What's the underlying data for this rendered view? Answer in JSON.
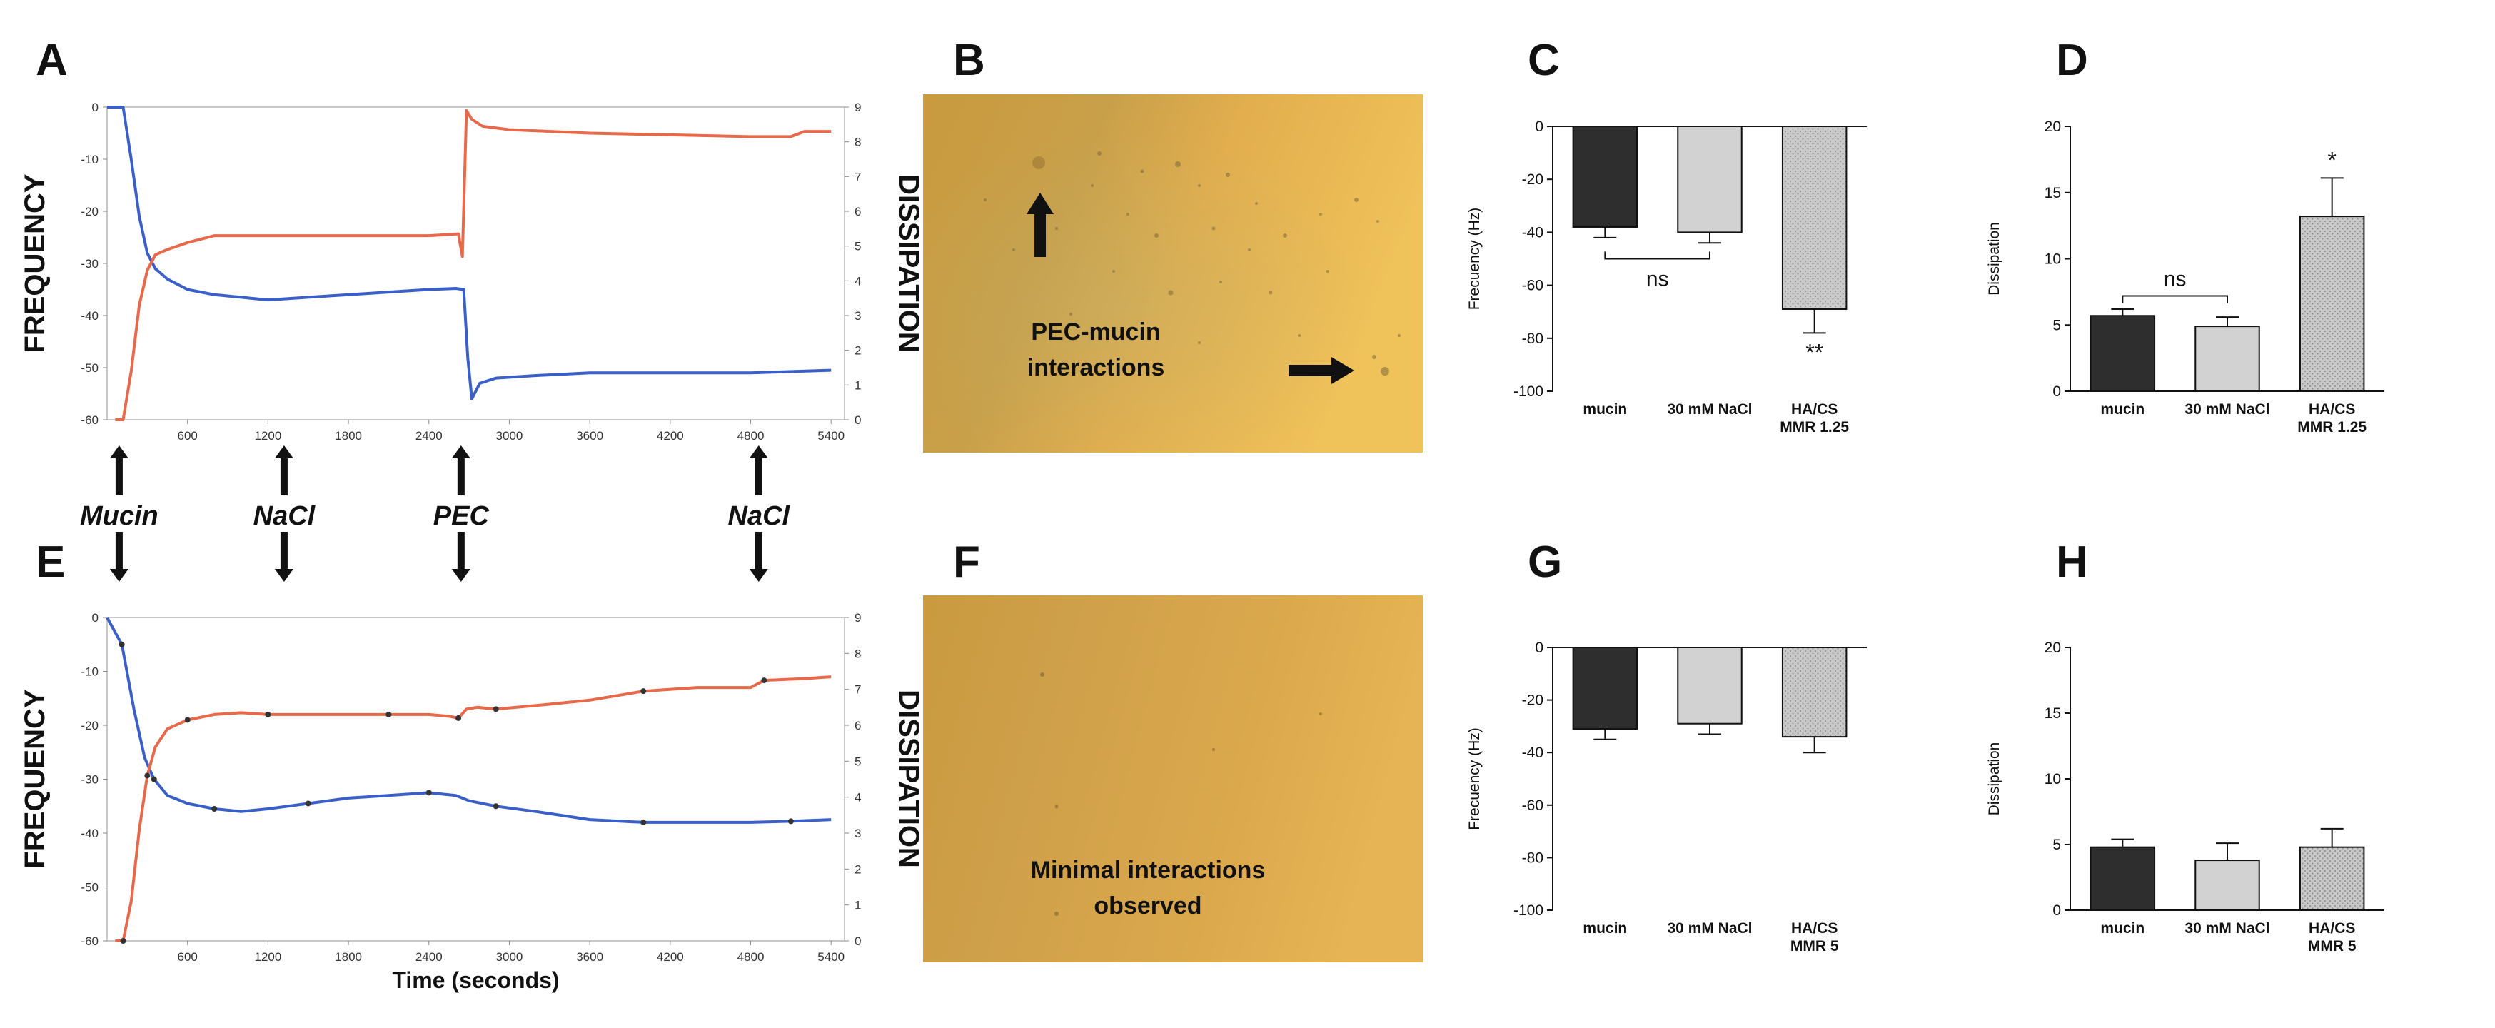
{
  "panel_letters": {
    "A": "A",
    "B": "B",
    "C": "C",
    "D": "D",
    "E": "E",
    "F": "F",
    "G": "G",
    "H": "H"
  },
  "colors": {
    "frequency": "#3a5fc8",
    "dissipation": "#e8694a",
    "bar_dark": "#2e2e2e",
    "bar_light": "#d2d2d2",
    "bar_dotted": "#bdbdbd",
    "micrograph_B": "#e3ad4c",
    "micrograph_F": "#d9a646"
  },
  "events": {
    "labels": [
      "Mucin",
      "NaCl",
      "PEC",
      "NaCl"
    ],
    "times": [
      90,
      1320,
      2640,
      4860
    ]
  },
  "micrographs": {
    "B": {
      "caption_line1": "PEC-mucin",
      "caption_line2": "interactions"
    },
    "F": {
      "caption_line1": "Minimal interactions",
      "caption_line2": "observed"
    }
  },
  "chart_data": [
    {
      "id": "A",
      "type": "line",
      "ylabel_left": "FREQUENCY",
      "ylabel_right": "DISSIPATION",
      "xlabel": "",
      "xlim": [
        0,
        5500
      ],
      "ylim_left": [
        -60,
        0
      ],
      "ylim_right": [
        0,
        9
      ],
      "x_ticks": [
        600,
        1200,
        1800,
        2400,
        3000,
        3600,
        4200,
        4800,
        5400
      ],
      "y_ticks_left": [
        0,
        -10,
        -20,
        -30,
        -40,
        -50,
        -60
      ],
      "y_ticks_right": [
        0,
        1,
        2,
        3,
        4,
        5,
        6,
        7,
        8,
        9
      ],
      "markers": false,
      "series": [
        {
          "name": "Frequency",
          "axis": "left",
          "color": "#3a5fc8",
          "x": [
            0,
            120,
            180,
            240,
            300,
            360,
            450,
            600,
            800,
            1000,
            1200,
            1500,
            1800,
            2100,
            2400,
            2600,
            2660,
            2690,
            2720,
            2780,
            2900,
            3200,
            3600,
            4200,
            4800,
            5400
          ],
          "y": [
            0,
            0,
            -10,
            -21,
            -28,
            -31,
            -33,
            -35,
            -36,
            -36.5,
            -37,
            -36.5,
            -36,
            -35.5,
            -35,
            -34.8,
            -35,
            -48,
            -56,
            -53,
            -52,
            -51.5,
            -51,
            -51,
            -51,
            -50.5
          ]
        },
        {
          "name": "Dissipation",
          "axis": "right",
          "color": "#e8694a",
          "x": [
            60,
            120,
            180,
            240,
            300,
            360,
            450,
            600,
            800,
            1200,
            1800,
            2400,
            2620,
            2650,
            2680,
            2720,
            2800,
            3000,
            3600,
            4200,
            4800,
            5100,
            5200,
            5400
          ],
          "y": [
            0,
            0,
            1.4,
            3.3,
            4.3,
            4.75,
            4.9,
            5.1,
            5.3,
            5.3,
            5.3,
            5.3,
            5.35,
            4.7,
            8.9,
            8.65,
            8.45,
            8.35,
            8.25,
            8.2,
            8.15,
            8.15,
            8.3,
            8.3
          ]
        }
      ]
    },
    {
      "id": "E",
      "type": "line",
      "ylabel_left": "FREQUENCY",
      "ylabel_right": "DISSIPATION",
      "xlabel": "Time (seconds)",
      "xlim": [
        0,
        5500
      ],
      "ylim_left": [
        -60,
        0
      ],
      "ylim_right": [
        0,
        9
      ],
      "x_ticks": [
        600,
        1200,
        1800,
        2400,
        3000,
        3600,
        4200,
        4800,
        5400
      ],
      "y_ticks_left": [
        0,
        -10,
        -20,
        -30,
        -40,
        -50,
        -60
      ],
      "y_ticks_right": [
        0,
        1,
        2,
        3,
        4,
        5,
        6,
        7,
        8,
        9
      ],
      "markers": true,
      "series": [
        {
          "name": "Frequency",
          "axis": "left",
          "color": "#3a5fc8",
          "x": [
            0,
            110,
            200,
            280,
            350,
            450,
            600,
            800,
            1000,
            1200,
            1500,
            1800,
            2100,
            2400,
            2600,
            2700,
            2900,
            3200,
            3600,
            4000,
            4400,
            4800,
            5100,
            5400
          ],
          "y": [
            0,
            -5,
            -17,
            -26,
            -30,
            -33,
            -34.5,
            -35.5,
            -36,
            -35.5,
            -34.5,
            -33.5,
            -33,
            -32.5,
            -33,
            -34,
            -35,
            -36,
            -37.5,
            -38,
            -38,
            -38,
            -37.8,
            -37.5
          ]
        },
        {
          "name": "Dissipation",
          "axis": "right",
          "color": "#e8694a",
          "x": [
            60,
            120,
            180,
            240,
            300,
            360,
            450,
            600,
            800,
            1000,
            1200,
            1500,
            1800,
            2100,
            2400,
            2550,
            2620,
            2680,
            2760,
            2900,
            3200,
            3600,
            4000,
            4400,
            4800,
            4900,
            5200,
            5400
          ],
          "y": [
            0,
            0,
            1.1,
            3.1,
            4.6,
            5.4,
            5.9,
            6.15,
            6.3,
            6.35,
            6.3,
            6.3,
            6.3,
            6.3,
            6.3,
            6.25,
            6.2,
            6.45,
            6.5,
            6.45,
            6.55,
            6.7,
            6.95,
            7.05,
            7.05,
            7.25,
            7.3,
            7.35
          ]
        }
      ]
    },
    {
      "id": "C",
      "type": "bar",
      "ylabel": "Frecuency (Hz)",
      "categories": [
        [
          "mucin"
        ],
        [
          "30 mM NaCl"
        ],
        [
          "HA/CS",
          "MMR 1.25"
        ]
      ],
      "values": [
        -38,
        -40,
        -69
      ],
      "errors": [
        4,
        4,
        9
      ],
      "ylim": [
        -100,
        0
      ],
      "y_ticks": [
        0,
        -20,
        -40,
        -60,
        -80,
        -100
      ],
      "significance": [
        "",
        "",
        "**"
      ],
      "ns_bracket": {
        "label": "ns",
        "between": [
          0,
          1
        ]
      }
    },
    {
      "id": "D",
      "type": "bar",
      "ylabel": "Dissipation",
      "categories": [
        [
          "mucin"
        ],
        [
          "30 mM NaCl"
        ],
        [
          "HA/CS",
          "MMR 1.25"
        ]
      ],
      "values": [
        5.7,
        4.9,
        13.2
      ],
      "errors": [
        0.5,
        0.7,
        2.9
      ],
      "ylim": [
        0,
        20
      ],
      "y_ticks": [
        0,
        5,
        10,
        15,
        20
      ],
      "significance": [
        "",
        "",
        "*"
      ],
      "ns_bracket": {
        "label": "ns",
        "between": [
          0,
          1
        ]
      }
    },
    {
      "id": "G",
      "type": "bar",
      "ylabel": "Frecuency (Hz)",
      "categories": [
        [
          "mucin"
        ],
        [
          "30 mM NaCl"
        ],
        [
          "HA/CS",
          "MMR 5"
        ]
      ],
      "values": [
        -31,
        -29,
        -34
      ],
      "errors": [
        4,
        4,
        6
      ],
      "ylim": [
        -100,
        0
      ],
      "y_ticks": [
        0,
        -20,
        -40,
        -60,
        -80,
        -100
      ],
      "significance": [
        "",
        "",
        ""
      ],
      "ns_bracket": null
    },
    {
      "id": "H",
      "type": "bar",
      "ylabel": "Dissipation",
      "categories": [
        [
          "mucin"
        ],
        [
          "30 mM NaCl"
        ],
        [
          "HA/CS",
          "MMR 5"
        ]
      ],
      "values": [
        4.8,
        3.8,
        4.8
      ],
      "errors": [
        0.6,
        1.3,
        1.4
      ],
      "ylim": [
        0,
        20
      ],
      "y_ticks": [
        0,
        5,
        10,
        15,
        20
      ],
      "significance": [
        "",
        "",
        ""
      ],
      "ns_bracket": null
    }
  ]
}
